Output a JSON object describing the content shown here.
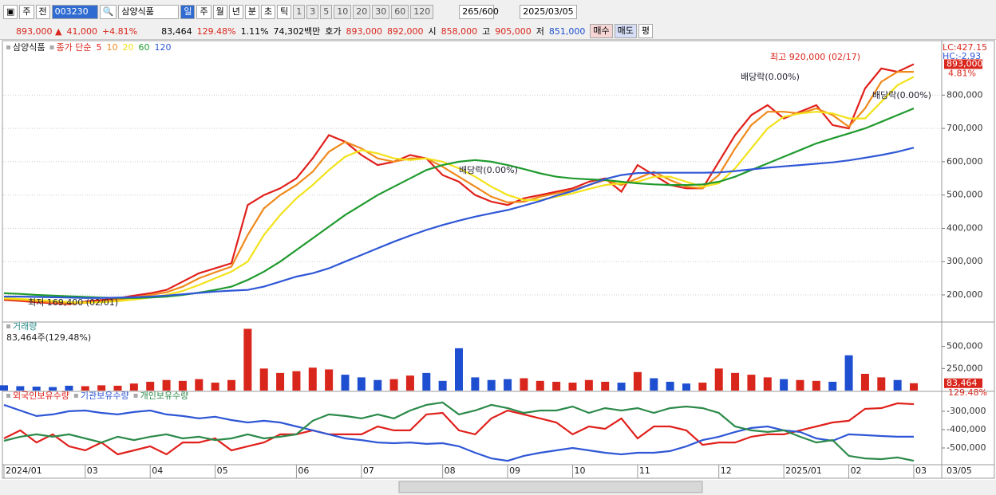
{
  "toolbar": {
    "period_prefix": "주",
    "compare": "전",
    "code": "003230",
    "name": "삼양식품",
    "intervals": [
      "일",
      "주",
      "월",
      "년",
      "분",
      "초",
      "틱"
    ],
    "counts": [
      "1",
      "3",
      "5",
      "10",
      "20",
      "30",
      "60",
      "120"
    ],
    "range": "265/600",
    "date": "2025/03/05"
  },
  "quote_bar": {
    "price": "893,000 ▲",
    "change": "41,000",
    "change_rate": "+4.81%",
    "volume": "83,464",
    "volume_rate": "129.48%",
    "turnover": "1.11%",
    "amount": "74,302백만",
    "ask_label": "호가",
    "ask": "893,000",
    "bid": "892,000",
    "open_label": "시",
    "open": "858,000",
    "high_label": "고",
    "high": "905,000",
    "low_label": "저",
    "low": "851,000",
    "buy": "매수",
    "sell": "매도",
    "avg": "평"
  },
  "chart_data": [
    {
      "type": "line",
      "title": "삼양식품",
      "subtitle": "종가 단순",
      "grid": true,
      "series": [
        {
          "name": "5",
          "color": "#e0201b",
          "values": [
            185000,
            182000,
            178000,
            175000,
            172000,
            180000,
            185000,
            190000,
            198000,
            205000,
            215000,
            240000,
            265000,
            280000,
            295000,
            470000,
            500000,
            520000,
            550000,
            610000,
            680000,
            660000,
            620000,
            590000,
            600000,
            620000,
            610000,
            560000,
            540000,
            500000,
            480000,
            470000,
            490000,
            500000,
            510000,
            520000,
            540000,
            550000,
            510000,
            590000,
            560000,
            530000,
            520000,
            520000,
            600000,
            680000,
            740000,
            770000,
            730000,
            750000,
            770000,
            710000,
            700000,
            820000,
            880000,
            870000,
            893000
          ]
        },
        {
          "name": "10",
          "color": "#f08a1c",
          "values": [
            188000,
            185000,
            181000,
            178000,
            175000,
            176000,
            180000,
            186000,
            192000,
            200000,
            208000,
            225000,
            250000,
            268000,
            285000,
            380000,
            460000,
            500000,
            530000,
            570000,
            630000,
            660000,
            640000,
            610000,
            600000,
            610000,
            610000,
            585000,
            555000,
            525000,
            495000,
            478000,
            480000,
            495000,
            505000,
            515000,
            530000,
            545000,
            530000,
            550000,
            570000,
            545000,
            525000,
            520000,
            560000,
            640000,
            710000,
            750000,
            750000,
            745000,
            760000,
            740000,
            705000,
            760000,
            840000,
            870000,
            870000
          ]
        },
        {
          "name": "20",
          "color": "#f2e21a",
          "values": [
            190000,
            188000,
            185000,
            182000,
            179000,
            177000,
            178000,
            181000,
            186000,
            192000,
            200000,
            212000,
            230000,
            250000,
            270000,
            300000,
            380000,
            440000,
            490000,
            530000,
            575000,
            615000,
            635000,
            625000,
            610000,
            605000,
            610000,
            600000,
            580000,
            555000,
            525000,
            500000,
            485000,
            485000,
            495000,
            505000,
            518000,
            530000,
            535000,
            540000,
            555000,
            555000,
            540000,
            525000,
            535000,
            580000,
            640000,
            700000,
            735000,
            745000,
            750000,
            745000,
            730000,
            730000,
            780000,
            830000,
            855000
          ]
        },
        {
          "name": "60",
          "color": "#1f9a2e",
          "values": [
            205000,
            203000,
            200000,
            198000,
            196000,
            194000,
            192000,
            191000,
            191000,
            192000,
            195000,
            200000,
            207000,
            215000,
            225000,
            245000,
            270000,
            300000,
            335000,
            370000,
            405000,
            440000,
            470000,
            500000,
            525000,
            550000,
            575000,
            590000,
            600000,
            605000,
            600000,
            590000,
            578000,
            565000,
            555000,
            550000,
            547000,
            545000,
            540000,
            535000,
            532000,
            530000,
            530000,
            532000,
            540000,
            555000,
            575000,
            595000,
            615000,
            635000,
            655000,
            670000,
            685000,
            700000,
            720000,
            740000,
            760000
          ]
        },
        {
          "name": "120",
          "color": "#2f57d6",
          "values": [
            195000,
            195000,
            194000,
            193000,
            192000,
            191000,
            191000,
            192000,
            193000,
            195000,
            198000,
            202000,
            206000,
            210000,
            213000,
            215000,
            225000,
            240000,
            255000,
            265000,
            280000,
            300000,
            320000,
            340000,
            360000,
            378000,
            395000,
            410000,
            423000,
            435000,
            445000,
            455000,
            468000,
            482000,
            498000,
            512000,
            530000,
            548000,
            560000,
            566000,
            567000,
            567000,
            567000,
            567000,
            568000,
            572000,
            577000,
            582000,
            586000,
            590000,
            594000,
            598000,
            604000,
            612000,
            620000,
            630000,
            642000
          ]
        }
      ],
      "ylim": [
        121000,
        954000
      ],
      "yticks": [
        {
          "value": 200000,
          "label": "200,000"
        },
        {
          "value": 300000,
          "label": "300,000"
        },
        {
          "value": 400000,
          "label": "400,000"
        },
        {
          "value": 500000,
          "label": "500,000"
        },
        {
          "value": 600000,
          "label": "600,000"
        },
        {
          "value": 700000,
          "label": "700,000"
        },
        {
          "value": 800000,
          "label": "800,000"
        }
      ],
      "annotations": [
        "최고 920,000 (02/17)",
        "최저 169,400 (02/01)",
        "배당락(0.00%)",
        "배당락(0.00%)",
        "배당락(0.00%)"
      ],
      "corner_labels": [
        "LC:427.15",
        "HC:-2.93"
      ],
      "last_label": "893,000",
      "last_rate": "4.81%"
    },
    {
      "type": "bar",
      "title": "거래량",
      "subtitle": "83,464주(129,48%)",
      "values": [
        60000,
        50000,
        45000,
        40000,
        55000,
        50000,
        60000,
        55000,
        80000,
        100000,
        120000,
        110000,
        130000,
        90000,
        120000,
        700000,
        250000,
        200000,
        220000,
        260000,
        240000,
        180000,
        150000,
        120000,
        130000,
        170000,
        200000,
        110000,
        480000,
        150000,
        120000,
        130000,
        140000,
        110000,
        100000,
        90000,
        120000,
        100000,
        90000,
        210000,
        140000,
        100000,
        80000,
        90000,
        250000,
        200000,
        180000,
        150000,
        130000,
        120000,
        110000,
        100000,
        400000,
        190000,
        150000,
        120000,
        83464
      ],
      "colors": [
        "#1f4fd1",
        "#1f4fd1",
        "#1f4fd1",
        "#1f4fd1",
        "#1f4fd1",
        "#d9261c",
        "#d9261c",
        "#d9261c",
        "#d9261c",
        "#d9261c",
        "#d9261c",
        "#d9261c",
        "#d9261c",
        "#d9261c",
        "#d9261c",
        "#d9261c",
        "#d9261c",
        "#d9261c",
        "#d9261c",
        "#d9261c",
        "#d9261c",
        "#1f4fd1",
        "#1f4fd1",
        "#1f4fd1",
        "#d9261c",
        "#d9261c",
        "#1f4fd1",
        "#1f4fd1",
        "#1f4fd1",
        "#1f4fd1",
        "#1f4fd1",
        "#1f4fd1",
        "#d9261c",
        "#d9261c",
        "#d9261c",
        "#d9261c",
        "#d9261c",
        "#d9261c",
        "#1f4fd1",
        "#d9261c",
        "#1f4fd1",
        "#1f4fd1",
        "#1f4fd1",
        "#d9261c",
        "#d9261c",
        "#d9261c",
        "#d9261c",
        "#d9261c",
        "#1f4fd1",
        "#d9261c",
        "#d9261c",
        "#1f4fd1",
        "#1f4fd1",
        "#d9261c",
        "#d9261c",
        "#1f4fd1",
        "#d9261c"
      ],
      "ylim": [
        0,
        768000
      ],
      "yticks": [
        {
          "value": 250000,
          "label": "250,000"
        },
        {
          "value": 500000,
          "label": "500,000"
        }
      ],
      "last_label": "83,464",
      "last_rate": "129.48%"
    },
    {
      "type": "line",
      "categories": [
        "2024/01",
        null,
        null,
        null,
        null,
        "03",
        null,
        null,
        null,
        "04",
        null,
        null,
        null,
        "05",
        null,
        null,
        null,
        null,
        "06",
        null,
        null,
        null,
        "07",
        null,
        null,
        null,
        null,
        "08",
        null,
        null,
        null,
        "09",
        null,
        null,
        null,
        "10",
        null,
        null,
        null,
        "11",
        null,
        null,
        null,
        null,
        "12",
        null,
        null,
        null,
        "2025/01",
        null,
        null,
        null,
        "02",
        null,
        null,
        null,
        "03"
      ],
      "series": [
        {
          "name": "외국인보유수량",
          "color": "#e0201b",
          "values": [
            -448000,
            -404000,
            -470000,
            -426000,
            -491000,
            -513000,
            -470000,
            -535000,
            -513000,
            -491000,
            -535000,
            -470000,
            -470000,
            -448000,
            -513000,
            -491000,
            -470000,
            -426000,
            -426000,
            -404000,
            -426000,
            -426000,
            -426000,
            -383000,
            -404000,
            -404000,
            -317000,
            -309000,
            -404000,
            -426000,
            -339000,
            -296000,
            -317000,
            -339000,
            -361000,
            -426000,
            -383000,
            -396000,
            -339000,
            -448000,
            -383000,
            -383000,
            -404000,
            -483000,
            -470000,
            -470000,
            -439000,
            -426000,
            -426000,
            -404000,
            -383000,
            -361000,
            -352000,
            -287000,
            -283000,
            -257000,
            -261000
          ]
        },
        {
          "name": "기관보유수량",
          "color": "#2f57d6",
          "values": [
            -265000,
            -296000,
            -326000,
            -317000,
            -300000,
            -296000,
            -309000,
            -317000,
            -304000,
            -296000,
            -317000,
            -326000,
            -339000,
            -330000,
            -348000,
            -361000,
            -352000,
            -361000,
            -383000,
            -404000,
            -426000,
            -448000,
            -457000,
            -470000,
            -474000,
            -470000,
            -478000,
            -474000,
            -491000,
            -526000,
            -557000,
            -570000,
            -543000,
            -526000,
            -513000,
            -500000,
            -513000,
            -526000,
            -535000,
            -526000,
            -526000,
            -517000,
            -491000,
            -457000,
            -439000,
            -413000,
            -391000,
            -383000,
            -404000,
            -413000,
            -448000,
            -461000,
            -426000,
            -430000,
            -435000,
            -439000,
            -439000
          ]
        },
        {
          "name": "개인보유수량",
          "color": "#2c8a4a",
          "values": [
            -461000,
            -439000,
            -426000,
            -439000,
            -426000,
            -448000,
            -470000,
            -439000,
            -457000,
            -439000,
            -426000,
            -448000,
            -439000,
            -457000,
            -448000,
            -426000,
            -448000,
            -439000,
            -426000,
            -352000,
            -317000,
            -326000,
            -339000,
            -317000,
            -339000,
            -296000,
            -265000,
            -252000,
            -317000,
            -296000,
            -265000,
            -283000,
            -309000,
            -296000,
            -296000,
            -274000,
            -309000,
            -283000,
            -296000,
            -283000,
            -309000,
            -283000,
            -274000,
            -283000,
            -309000,
            -383000,
            -404000,
            -413000,
            -404000,
            -439000,
            -470000,
            -457000,
            -543000,
            -557000,
            -561000,
            -552000,
            -570000
          ]
        }
      ],
      "ylim": [
        -587000,
        -196000
      ],
      "yticks": [
        {
          "value": -300000,
          "label": "-300,000"
        },
        {
          "value": -400000,
          "label": "-400,000"
        },
        {
          "value": -500000,
          "label": "-500,000"
        }
      ],
      "current_date": "03/05"
    }
  ]
}
